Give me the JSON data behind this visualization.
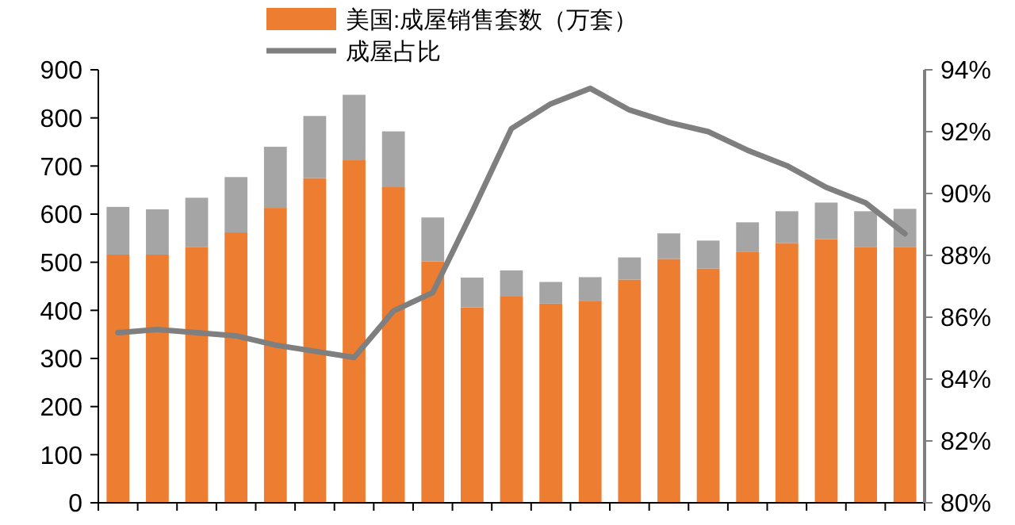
{
  "chart_data": {
    "type": "bar",
    "stacked": true,
    "categories": [
      null,
      null,
      null,
      null,
      null,
      null,
      null,
      null,
      null,
      null,
      null,
      null,
      null,
      null,
      null,
      null,
      null,
      null,
      null,
      null,
      null
    ],
    "series": [
      {
        "name": "美国:成屋销售套数（万套）",
        "color": "#ed7d31",
        "values": [
          516,
          516,
          531,
          562,
          613,
          675,
          712,
          656,
          502,
          406,
          430,
          414,
          420,
          464,
          507,
          487,
          521,
          540,
          548,
          531,
          531
        ]
      },
      {
        "color": "#a5a5a5",
        "values": [
          99,
          94,
          103,
          115,
          127,
          129,
          136,
          116,
          91,
          62,
          53,
          45,
          49,
          46,
          53,
          58,
          62,
          66,
          76,
          75,
          80
        ]
      },
      {
        "name": "成屋占比",
        "type": "line",
        "axis": "y2",
        "color": "#7f7f7f",
        "values": [
          85.5,
          85.6,
          85.5,
          85.4,
          85.1,
          84.9,
          84.7,
          86.2,
          86.8,
          89.4,
          92.1,
          92.9,
          93.4,
          92.7,
          92.3,
          92.0,
          91.4,
          90.9,
          90.2,
          89.7,
          88.7
        ]
      }
    ],
    "ylim": [
      0,
      900
    ],
    "yticks": [
      0,
      100,
      200,
      300,
      400,
      500,
      600,
      700,
      800,
      900
    ],
    "y2lim": [
      80,
      94
    ],
    "y2ticks": [
      {
        "value": 80,
        "label": "80%"
      },
      {
        "value": 82,
        "label": "82%"
      },
      {
        "value": 84,
        "label": "84%"
      },
      {
        "value": 86,
        "label": "86%"
      },
      {
        "value": 88,
        "label": "88%"
      },
      {
        "value": 90,
        "label": "90%"
      },
      {
        "value": 92,
        "label": "92%"
      },
      {
        "value": 94,
        "label": "94%"
      }
    ],
    "legend": "top",
    "grid": false
  }
}
